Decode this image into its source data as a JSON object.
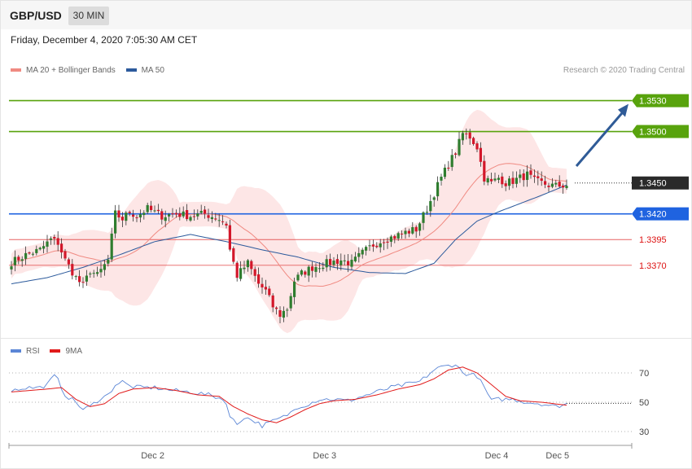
{
  "header": {
    "symbol": "GBP/USD",
    "timeframe": "30 MIN",
    "datetime": "Friday, December 4, 2020 7:05:30 AM CET",
    "credit": "Research © 2020 Trading Central"
  },
  "legend_price": [
    {
      "label": "MA 20 + Bollinger Bands",
      "color": "#f08a82"
    },
    {
      "label": "MA 50",
      "color": "#2c5a9c"
    }
  ],
  "legend_rsi": [
    {
      "label": "RSI",
      "color": "#5b86d6"
    },
    {
      "label": "9MA",
      "color": "#e11b1b"
    }
  ],
  "colors": {
    "bull": "#2f7d2f",
    "bear": "#d3172a",
    "resistance": "#58a30d",
    "pivot": "#1f63e0",
    "support": "#e03a3a",
    "current": "#2a2a2a",
    "arrow": "#2f5b97",
    "band": "#fde2e2"
  },
  "chart_data": [
    {
      "type": "line",
      "panel": "price",
      "ylim": [
        1.3305,
        1.3555
      ],
      "x_ticks": [
        {
          "label": "Dec 2",
          "index": 44
        },
        {
          "label": "Dec 3",
          "index": 92
        },
        {
          "label": "Dec 4",
          "index": 140
        },
        {
          "label": "Dec 5",
          "index": 157
        }
      ],
      "levels": [
        {
          "label": "1.3530",
          "value": 1.353,
          "kind": "resistance"
        },
        {
          "label": "1.3500",
          "value": 1.35,
          "kind": "resistance"
        },
        {
          "label": "1.3450",
          "value": 1.345,
          "kind": "current"
        },
        {
          "label": "1.3420",
          "value": 1.342,
          "kind": "pivot"
        },
        {
          "label": "1.3395",
          "value": 1.3395,
          "kind": "support"
        },
        {
          "label": "1.3370",
          "value": 1.337,
          "kind": "support"
        }
      ],
      "close_anchors": [
        [
          0,
          1.3373
        ],
        [
          4,
          1.338
        ],
        [
          8,
          1.3385
        ],
        [
          11,
          1.3395
        ],
        [
          13,
          1.3392
        ],
        [
          15,
          1.3375
        ],
        [
          18,
          1.3358
        ],
        [
          20,
          1.335
        ],
        [
          22,
          1.3365
        ],
        [
          24,
          1.336
        ],
        [
          27,
          1.3375
        ],
        [
          29,
          1.342
        ],
        [
          31,
          1.3415
        ],
        [
          33,
          1.3422
        ],
        [
          35,
          1.3418
        ],
        [
          38,
          1.3425
        ],
        [
          42,
          1.3418
        ],
        [
          46,
          1.342
        ],
        [
          50,
          1.3418
        ],
        [
          54,
          1.342
        ],
        [
          58,
          1.3415
        ],
        [
          60,
          1.341
        ],
        [
          61,
          1.3385
        ],
        [
          63,
          1.336
        ],
        [
          66,
          1.3372
        ],
        [
          69,
          1.3352
        ],
        [
          71,
          1.3345
        ],
        [
          73,
          1.333
        ],
        [
          75,
          1.3322
        ],
        [
          77,
          1.3328
        ],
        [
          79,
          1.3355
        ],
        [
          81,
          1.3362
        ],
        [
          84,
          1.3368
        ],
        [
          88,
          1.3372
        ],
        [
          92,
          1.3375
        ],
        [
          95,
          1.3372
        ],
        [
          98,
          1.3382
        ],
        [
          101,
          1.339
        ],
        [
          104,
          1.3395
        ],
        [
          107,
          1.3398
        ],
        [
          110,
          1.3402
        ],
        [
          113,
          1.3405
        ],
        [
          116,
          1.3425
        ],
        [
          118,
          1.344
        ],
        [
          120,
          1.3455
        ],
        [
          122,
          1.3468
        ],
        [
          124,
          1.348
        ],
        [
          126,
          1.3498
        ],
        [
          128,
          1.3495
        ],
        [
          130,
          1.3485
        ],
        [
          132,
          1.3455
        ],
        [
          134,
          1.345
        ],
        [
          136,
          1.3455
        ],
        [
          138,
          1.345
        ],
        [
          140,
          1.3452
        ],
        [
          142,
          1.3455
        ],
        [
          144,
          1.3458
        ],
        [
          146,
          1.3452
        ],
        [
          148,
          1.345
        ],
        [
          150,
          1.3448
        ],
        [
          152,
          1.3447
        ],
        [
          155,
          1.3448
        ]
      ],
      "ma50_anchors": [
        [
          0,
          1.3352
        ],
        [
          10,
          1.3358
        ],
        [
          20,
          1.3368
        ],
        [
          30,
          1.338
        ],
        [
          40,
          1.3393
        ],
        [
          50,
          1.34
        ],
        [
          60,
          1.3393
        ],
        [
          70,
          1.3385
        ],
        [
          80,
          1.3378
        ],
        [
          90,
          1.3368
        ],
        [
          100,
          1.3363
        ],
        [
          110,
          1.3362
        ],
        [
          118,
          1.3372
        ],
        [
          124,
          1.3395
        ],
        [
          130,
          1.3413
        ],
        [
          136,
          1.3422
        ],
        [
          142,
          1.343
        ],
        [
          148,
          1.3438
        ],
        [
          155,
          1.3448
        ]
      ]
    },
    {
      "type": "line",
      "panel": "rsi",
      "ylim": [
        20,
        80
      ],
      "y_ticks": [
        70,
        50,
        30
      ],
      "rsi_anchors": [
        [
          0,
          58
        ],
        [
          4,
          60
        ],
        [
          8,
          60
        ],
        [
          10,
          62
        ],
        [
          12,
          68
        ],
        [
          13,
          65
        ],
        [
          15,
          55
        ],
        [
          18,
          50
        ],
        [
          20,
          45
        ],
        [
          22,
          47
        ],
        [
          25,
          53
        ],
        [
          27,
          55
        ],
        [
          29,
          62
        ],
        [
          31,
          64
        ],
        [
          33,
          61
        ],
        [
          36,
          60
        ],
        [
          40,
          60
        ],
        [
          45,
          58
        ],
        [
          50,
          57
        ],
        [
          55,
          55
        ],
        [
          58,
          53
        ],
        [
          60,
          50
        ],
        [
          61,
          40
        ],
        [
          63,
          35
        ],
        [
          65,
          40
        ],
        [
          68,
          37
        ],
        [
          70,
          34
        ],
        [
          72,
          36
        ],
        [
          74,
          38
        ],
        [
          76,
          40
        ],
        [
          78,
          43
        ],
        [
          80,
          47
        ],
        [
          82,
          48
        ],
        [
          86,
          52
        ],
        [
          90,
          52
        ],
        [
          94,
          51
        ],
        [
          98,
          54
        ],
        [
          102,
          57
        ],
        [
          106,
          60
        ],
        [
          110,
          62
        ],
        [
          114,
          64
        ],
        [
          116,
          68
        ],
        [
          118,
          72
        ],
        [
          120,
          74
        ],
        [
          122,
          75
        ],
        [
          124,
          76
        ],
        [
          126,
          70
        ],
        [
          128,
          69
        ],
        [
          130,
          68
        ],
        [
          132,
          60
        ],
        [
          134,
          51
        ],
        [
          136,
          52
        ],
        [
          140,
          52
        ],
        [
          144,
          50
        ],
        [
          148,
          49
        ],
        [
          152,
          47
        ],
        [
          155,
          49
        ]
      ],
      "ma9_anchors": [
        [
          0,
          57
        ],
        [
          10,
          59
        ],
        [
          14,
          60
        ],
        [
          18,
          52
        ],
        [
          22,
          47
        ],
        [
          26,
          49
        ],
        [
          30,
          56
        ],
        [
          34,
          59
        ],
        [
          40,
          60
        ],
        [
          46,
          58
        ],
        [
          52,
          55
        ],
        [
          58,
          54
        ],
        [
          62,
          47
        ],
        [
          66,
          42
        ],
        [
          70,
          38
        ],
        [
          74,
          36
        ],
        [
          78,
          40
        ],
        [
          82,
          45
        ],
        [
          86,
          49
        ],
        [
          90,
          51
        ],
        [
          96,
          52
        ],
        [
          102,
          55
        ],
        [
          108,
          59
        ],
        [
          114,
          62
        ],
        [
          118,
          66
        ],
        [
          122,
          72
        ],
        [
          126,
          74
        ],
        [
          130,
          70
        ],
        [
          134,
          62
        ],
        [
          138,
          54
        ],
        [
          142,
          51
        ],
        [
          148,
          50
        ],
        [
          155,
          48
        ]
      ]
    }
  ]
}
